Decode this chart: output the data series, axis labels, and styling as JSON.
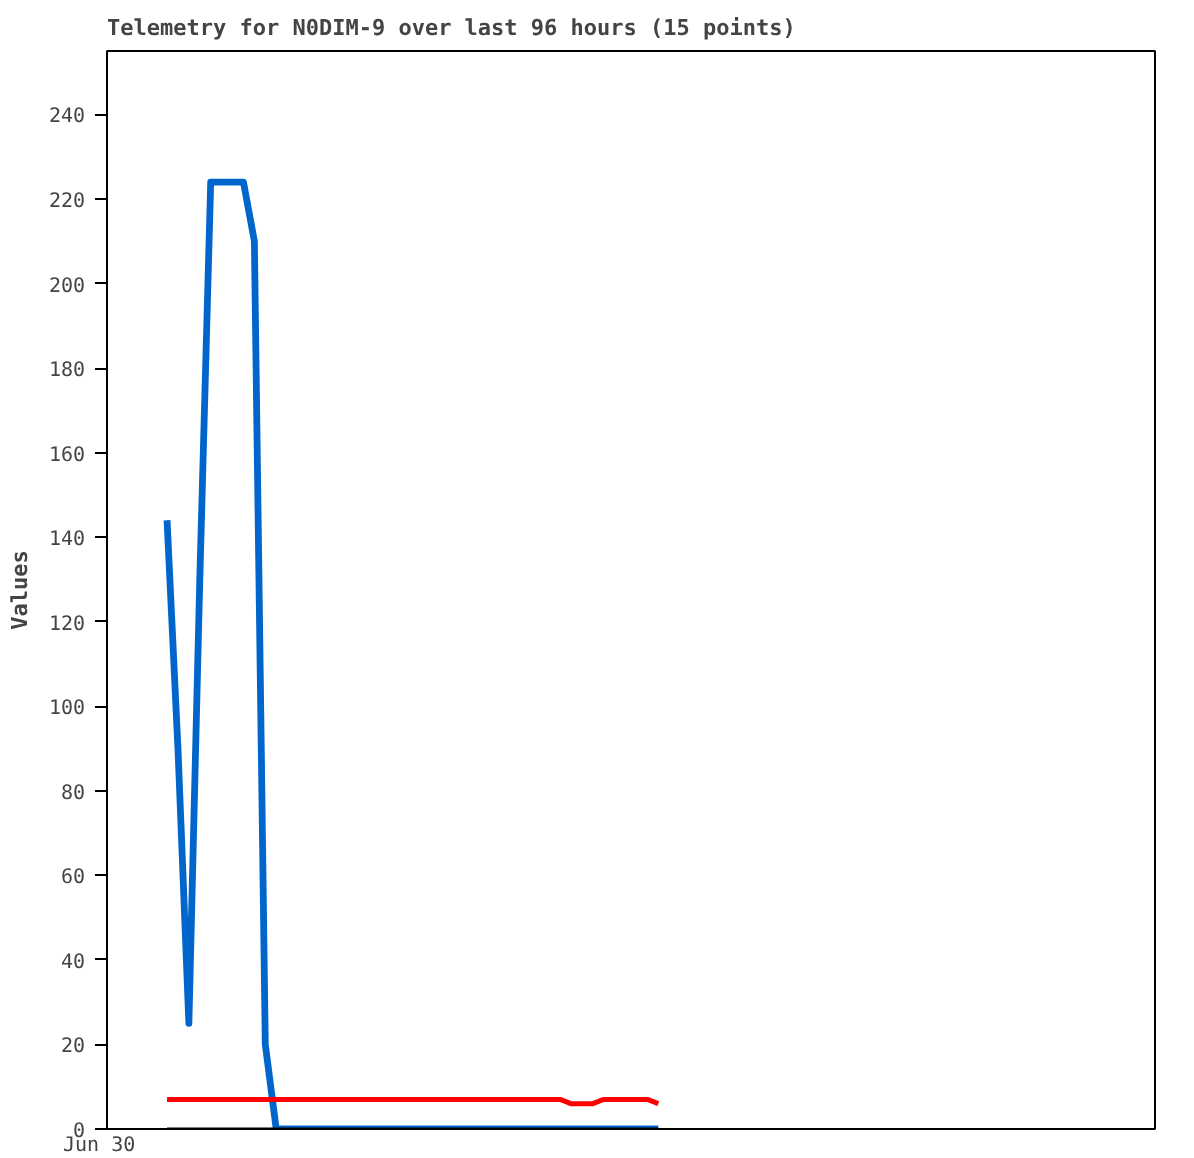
{
  "chart_data": {
    "type": "line",
    "title": "Telemetry for N0DIM-9 over last 96 hours (15 points)",
    "ylabel": "Values",
    "annotations": [
      "Jun 30"
    ],
    "categories": [
      null,
      null,
      null,
      null,
      null,
      null,
      null,
      null,
      null,
      null,
      null,
      null,
      null,
      null,
      null,
      null,
      null,
      null,
      null,
      null,
      null,
      null,
      null,
      null,
      null,
      null,
      null,
      null,
      null,
      null,
      null,
      null,
      null,
      null,
      null,
      null,
      null,
      null,
      null,
      null,
      null,
      null,
      null,
      null,
      null,
      null,
      null,
      null,
      null,
      null,
      null,
      null,
      null,
      null,
      null,
      null,
      null,
      null,
      null,
      null,
      null,
      null,
      null,
      null,
      null,
      null,
      null,
      null,
      null,
      null,
      null,
      null,
      null,
      null,
      null,
      null,
      null,
      null,
      null,
      null,
      null,
      null,
      null,
      null,
      null,
      null,
      null,
      null,
      null,
      null,
      null,
      null,
      null,
      null,
      null,
      null
    ],
    "ylim": [
      0,
      255
    ],
    "yticks": [
      0,
      20,
      40,
      60,
      80,
      100,
      120,
      140,
      160,
      180,
      200,
      220,
      240
    ],
    "grid": false,
    "marker": "none",
    "line_style": "solid",
    "series": [
      {
        "color": "#0066cc",
        "values": [
          null,
          null,
          null,
          null,
          null,
          144,
          90,
          25,
          130,
          224,
          224,
          224,
          224,
          210,
          20,
          0,
          0,
          0,
          0,
          0,
          0,
          0,
          0,
          0,
          0,
          0,
          0,
          0,
          0,
          0,
          0,
          0,
          0,
          0,
          0,
          0,
          0,
          0,
          0,
          0,
          0,
          0,
          0,
          0,
          0,
          0,
          0,
          0,
          0,
          0,
          0,
          null,
          null,
          null,
          null,
          null,
          null,
          null,
          null,
          null,
          null,
          null,
          null,
          null,
          null,
          null,
          null,
          null,
          null,
          null,
          null,
          null,
          null,
          null,
          null,
          null,
          null,
          null,
          null,
          null,
          null,
          null,
          null,
          null,
          null,
          null,
          null,
          null,
          null,
          null,
          null,
          null,
          null,
          null,
          null,
          null
        ]
      },
      {
        "color": "#ff0000",
        "values": [
          null,
          null,
          null,
          null,
          null,
          7,
          7,
          7,
          7,
          7,
          7,
          7,
          7,
          7,
          7,
          7,
          7,
          7,
          7,
          7,
          7,
          7,
          7,
          7,
          7,
          7,
          7,
          7,
          7,
          7,
          7,
          7,
          7,
          7,
          7,
          7,
          7,
          7,
          7,
          7,
          7,
          7,
          6,
          6,
          6,
          7,
          7,
          7,
          7,
          7,
          6,
          null,
          null,
          null,
          null,
          null,
          null,
          null,
          null,
          null,
          null,
          null,
          null,
          null,
          null,
          null,
          null,
          null,
          null,
          null,
          null,
          null,
          null,
          null,
          null,
          null,
          null,
          null,
          null,
          null,
          null,
          null,
          null,
          null,
          null,
          null,
          null,
          null,
          null,
          null,
          null,
          null,
          null,
          null,
          null,
          null
        ]
      },
      {
        "color": "#000000",
        "values": [
          null,
          null,
          null,
          null,
          null,
          0,
          0,
          0,
          0,
          0,
          0,
          0,
          0,
          0,
          0,
          0,
          0,
          0,
          0,
          0,
          0,
          0,
          0,
          0,
          0,
          0,
          0,
          0,
          0,
          0,
          0,
          0,
          0,
          0,
          0,
          0,
          0,
          0,
          0,
          0,
          0,
          0,
          0,
          0,
          0,
          0,
          0,
          0,
          0,
          0,
          0,
          null,
          null,
          null,
          null,
          null,
          null,
          null,
          null,
          null,
          null,
          null,
          null,
          null,
          null,
          null,
          null,
          null,
          null,
          null,
          null,
          null,
          null,
          null,
          null,
          null,
          null,
          null,
          null,
          null,
          null,
          null,
          null,
          null,
          null,
          null,
          null,
          null,
          null,
          null,
          null,
          null,
          null,
          null,
          null,
          null
        ]
      }
    ]
  }
}
